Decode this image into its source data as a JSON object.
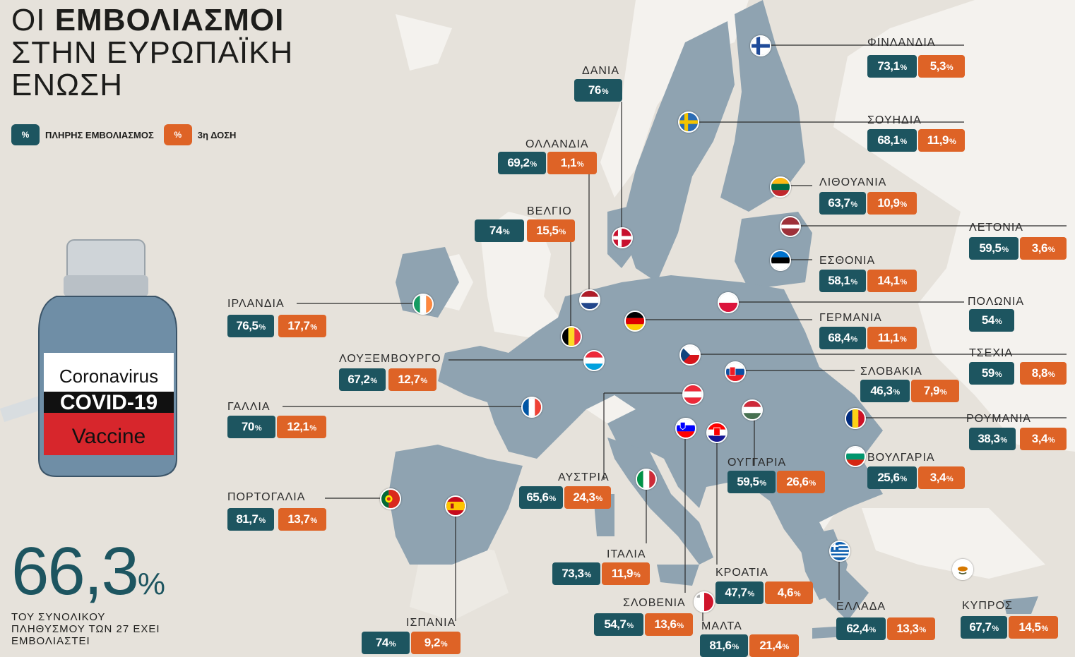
{
  "title": {
    "line1_light": "ΟΙ",
    "line1_bold": "ΕΜΒΟΛΙΑΣΜΟΙ",
    "line2": "ΣΤΗΝ ΕΥΡΩΠΑΪΚΗ",
    "line3": "ΕΝΩΣΗ"
  },
  "legend": {
    "chip_symbol": "%",
    "full_label": "ΠΛΗΡΗΣ ΕΜΒΟΛΙΑΣΜΟΣ",
    "third_label": "3η ΔΟΣΗ"
  },
  "colors": {
    "teal": "#1d5560",
    "orange": "#de6326",
    "land": "#8fa3b1",
    "background": "#e6e2db"
  },
  "summary": {
    "value": "66,3",
    "unit": "%",
    "text_line1": "ΤΟΥ ΣΥΝΟΛΙΚΟΥ",
    "text_line2": "ΠΛΗΘΥΣΜΟΥ ΤΩΝ 27 ΕΧΕΙ",
    "text_line3": "ΕΜΒΟΛΙΑΣΤΕΙ"
  },
  "vial": {
    "line1": "Coronavirus",
    "line2": "COVID-19",
    "line3": "Vaccine"
  },
  "countries": [
    {
      "id": "finland",
      "name": "ΦΙΝΛΑΝΔΙΑ",
      "full": "73,1",
      "third": "5,3"
    },
    {
      "id": "sweden",
      "name": "ΣΟΥΗΔΙΑ",
      "full": "68,1",
      "third": "11,9"
    },
    {
      "id": "lithuania",
      "name": "ΛΙΘΟΥΑΝΙΑ",
      "full": "63,7",
      "third": "10,9"
    },
    {
      "id": "latvia",
      "name": "ΛΕΤΟΝΙΑ",
      "full": "59,5",
      "third": "3,6"
    },
    {
      "id": "estonia",
      "name": "ΕΣΘΟΝΙΑ",
      "full": "58,1",
      "third": "14,1"
    },
    {
      "id": "poland",
      "name": "ΠΟΛΩΝΙΑ",
      "full": "54",
      "third": null
    },
    {
      "id": "germany",
      "name": "ΓΕΡΜΑΝΙΑ",
      "full": "68,4",
      "third": "11,1"
    },
    {
      "id": "czechia",
      "name": "ΤΣΕΧΙΑ",
      "full": "59",
      "third": "8,8"
    },
    {
      "id": "slovakia",
      "name": "ΣΛΟΒΑΚΙΑ",
      "full": "46,3",
      "third": "7,9"
    },
    {
      "id": "romania",
      "name": "ΡΟΥΜΑΝΙΑ",
      "full": "38,3",
      "third": "3,4"
    },
    {
      "id": "bulgaria",
      "name": "ΒΟΥΛΓΑΡΙΑ",
      "full": "25,6",
      "third": "3,4"
    },
    {
      "id": "hungary",
      "name": "ΟΥΓΓΑΡΙΑ",
      "full": "59,5",
      "third": "26,6"
    },
    {
      "id": "cyprus",
      "name": "ΚΥΠΡΟΣ",
      "full": "67,7",
      "third": "14,5"
    },
    {
      "id": "greece",
      "name": "ΕΛΛΑΔΑ",
      "full": "62,4",
      "third": "13,3"
    },
    {
      "id": "croatia",
      "name": "ΚΡΟΑΤΙΑ",
      "full": "47,7",
      "third": "4,6"
    },
    {
      "id": "malta",
      "name": "ΜΑΛΤΑ",
      "full": "81,6",
      "third": "21,4"
    },
    {
      "id": "slovenia",
      "name": "ΣΛΟΒΕΝΙΑ",
      "full": "54,7",
      "third": "13,6"
    },
    {
      "id": "italy",
      "name": "ΙΤΑΛΙΑ",
      "full": "73,3",
      "third": "11,9"
    },
    {
      "id": "austria",
      "name": "ΑΥΣΤΡΙΑ",
      "full": "65,6",
      "third": "24,3"
    },
    {
      "id": "spain",
      "name": "ΙΣΠΑΝΙΑ",
      "full": "74",
      "third": "9,2"
    },
    {
      "id": "portugal",
      "name": "ΠΟΡΤΟΓΑΛΙΑ",
      "full": "81,7",
      "third": "13,7"
    },
    {
      "id": "france",
      "name": "ΓΑΛΛΙΑ",
      "full": "70",
      "third": "12,1"
    },
    {
      "id": "luxembourg",
      "name": "ΛΟΥΞΕΜΒΟΥΡΓΟ",
      "full": "67,2",
      "third": "12,7"
    },
    {
      "id": "ireland",
      "name": "ΙΡΛΑΝΔΙΑ",
      "full": "76,5",
      "third": "17,7"
    },
    {
      "id": "belgium",
      "name": "ΒΕΛΓΙΟ",
      "full": "74",
      "third": "15,5"
    },
    {
      "id": "netherlands",
      "name": "ΟΛΛΑΝΔΙΑ",
      "full": "69,2",
      "third": "1,1"
    },
    {
      "id": "denmark",
      "name": "ΔΑΝΙΑ",
      "full": "76",
      "third": null
    }
  ]
}
